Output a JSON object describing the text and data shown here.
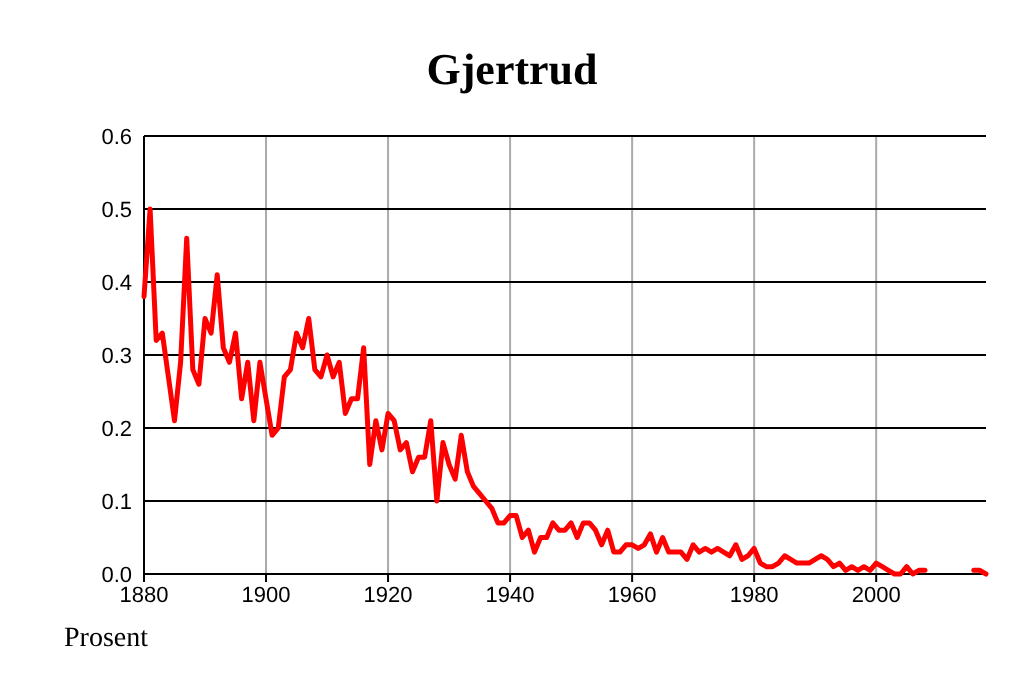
{
  "chart_data": {
    "type": "line",
    "title": "Gjertrud",
    "ylabel": "Prosent",
    "x": [
      1880,
      1881,
      1882,
      1883,
      1884,
      1885,
      1886,
      1887,
      1888,
      1889,
      1890,
      1891,
      1892,
      1893,
      1894,
      1895,
      1896,
      1897,
      1898,
      1899,
      1900,
      1901,
      1902,
      1903,
      1904,
      1905,
      1906,
      1907,
      1908,
      1909,
      1910,
      1911,
      1912,
      1913,
      1914,
      1915,
      1916,
      1917,
      1918,
      1919,
      1920,
      1921,
      1922,
      1923,
      1924,
      1925,
      1926,
      1927,
      1928,
      1929,
      1930,
      1931,
      1932,
      1933,
      1934,
      1935,
      1936,
      1937,
      1938,
      1939,
      1940,
      1941,
      1942,
      1943,
      1944,
      1945,
      1946,
      1947,
      1948,
      1949,
      1950,
      1951,
      1952,
      1953,
      1954,
      1955,
      1956,
      1957,
      1958,
      1959,
      1960,
      1961,
      1962,
      1963,
      1964,
      1965,
      1966,
      1967,
      1968,
      1969,
      1970,
      1971,
      1972,
      1973,
      1974,
      1975,
      1976,
      1977,
      1978,
      1979,
      1980,
      1981,
      1982,
      1983,
      1984,
      1985,
      1986,
      1987,
      1988,
      1989,
      1990,
      1991,
      1992,
      1993,
      1994,
      1995,
      1996,
      1997,
      1998,
      1999,
      2000,
      2001,
      2002,
      2003,
      2004,
      2005,
      2006,
      2007,
      2008
    ],
    "series": [
      {
        "color": "#ff0000",
        "values": [
          0.38,
          0.5,
          0.32,
          0.33,
          0.27,
          0.21,
          0.29,
          0.46,
          0.28,
          0.26,
          0.35,
          0.33,
          0.41,
          0.31,
          0.29,
          0.33,
          0.24,
          0.29,
          0.21,
          0.29,
          0.24,
          0.19,
          0.2,
          0.27,
          0.28,
          0.33,
          0.31,
          0.35,
          0.28,
          0.27,
          0.3,
          0.27,
          0.29,
          0.22,
          0.24,
          0.24,
          0.31,
          0.15,
          0.21,
          0.17,
          0.22,
          0.21,
          0.17,
          0.18,
          0.14,
          0.16,
          0.16,
          0.21,
          0.1,
          0.18,
          0.15,
          0.13,
          0.19,
          0.14,
          0.12,
          0.11,
          0.1,
          0.09,
          0.07,
          0.07,
          0.08,
          0.08,
          0.05,
          0.06,
          0.03,
          0.05,
          0.05,
          0.07,
          0.06,
          0.06,
          0.07,
          0.05,
          0.07,
          0.07,
          0.06,
          0.04,
          0.06,
          0.03,
          0.03,
          0.04,
          0.04,
          0.035,
          0.04,
          0.055,
          0.03,
          0.05,
          0.03,
          0.03,
          0.03,
          0.02,
          0.04,
          0.03,
          0.035,
          0.03,
          0.035,
          0.03,
          0.025,
          0.04,
          0.02,
          0.025,
          0.035,
          0.015,
          0.01,
          0.01,
          0.015,
          0.025,
          0.02,
          0.015,
          0.015,
          0.015,
          0.02,
          0.025,
          0.02,
          0.01,
          0.015,
          0.005,
          0.01,
          0.005,
          0.01,
          0.005,
          0.015,
          0.01,
          0.005,
          0,
          0,
          0.01,
          0,
          0.005,
          0.005
        ]
      },
      {
        "color": "#ff0000",
        "x": [
          2016,
          2017,
          2018
        ],
        "values": [
          0.005,
          0.005,
          0
        ]
      }
    ],
    "xlim": [
      1880,
      2018
    ],
    "ylim": [
      0,
      0.6
    ],
    "xticks": [
      1880,
      1900,
      1920,
      1940,
      1960,
      1980,
      2000
    ],
    "yticks": [
      {
        "value": 0,
        "label": "0.0"
      },
      {
        "value": 0.1,
        "label": "0.1"
      },
      {
        "value": 0.2,
        "label": "0.2"
      },
      {
        "value": 0.3,
        "label": "0.3"
      },
      {
        "value": 0.4,
        "label": "0.4"
      },
      {
        "value": 0.5,
        "label": "0.5"
      },
      {
        "value": 0.6,
        "label": "0.6"
      }
    ],
    "grid": true,
    "line_style": "solid",
    "marker": "none"
  }
}
